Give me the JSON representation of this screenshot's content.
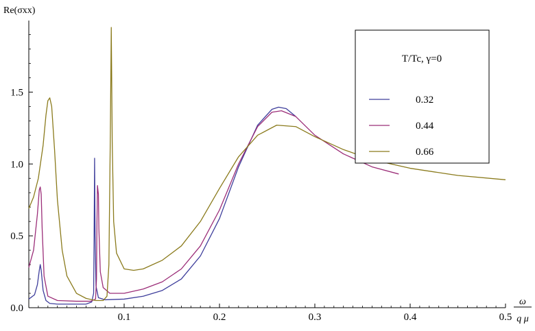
{
  "chart_data": {
    "type": "line",
    "ylabel": "Re(σxx)",
    "xlabel_numerator": "ω",
    "xlabel_denominator": "q μ",
    "xlim": [
      0,
      0.5
    ],
    "ylim": [
      0,
      1.95
    ],
    "x_ticks": [
      {
        "value": 0.1,
        "label": "0.1"
      },
      {
        "value": 0.2,
        "label": "0.2"
      },
      {
        "value": 0.3,
        "label": "0.3"
      },
      {
        "value": 0.4,
        "label": "0.4"
      },
      {
        "value": 0.5,
        "label": "0.5"
      }
    ],
    "y_ticks": [
      {
        "value": 0.0,
        "label": "0.0"
      },
      {
        "value": 0.5,
        "label": "0.5"
      },
      {
        "value": 1.0,
        "label": "1.0"
      },
      {
        "value": 1.5,
        "label": "1.5"
      }
    ],
    "legend": {
      "title": "T/Tc, γ=0",
      "position": "top-right"
    },
    "series": [
      {
        "name": "0.32",
        "color": "#3d3d9b",
        "points": [
          [
            0.0,
            0.06
          ],
          [
            0.006,
            0.09
          ],
          [
            0.009,
            0.16
          ],
          [
            0.011,
            0.26
          ],
          [
            0.012,
            0.3
          ],
          [
            0.013,
            0.26
          ],
          [
            0.015,
            0.12
          ],
          [
            0.018,
            0.05
          ],
          [
            0.022,
            0.03
          ],
          [
            0.03,
            0.025
          ],
          [
            0.045,
            0.025
          ],
          [
            0.06,
            0.025
          ],
          [
            0.066,
            0.04
          ],
          [
            0.068,
            0.1
          ],
          [
            0.0685,
            0.5
          ],
          [
            0.069,
            1.04
          ],
          [
            0.0695,
            0.5
          ],
          [
            0.0705,
            0.15
          ],
          [
            0.073,
            0.07
          ],
          [
            0.08,
            0.055
          ],
          [
            0.1,
            0.06
          ],
          [
            0.12,
            0.08
          ],
          [
            0.14,
            0.12
          ],
          [
            0.16,
            0.2
          ],
          [
            0.18,
            0.36
          ],
          [
            0.2,
            0.62
          ],
          [
            0.22,
            0.98
          ],
          [
            0.24,
            1.27
          ],
          [
            0.255,
            1.38
          ],
          [
            0.262,
            1.395
          ],
          [
            0.27,
            1.385
          ],
          [
            0.28,
            1.33
          ]
        ]
      },
      {
        "name": "0.44",
        "color": "#9b2d78",
        "points": [
          [
            0.0,
            0.28
          ],
          [
            0.005,
            0.4
          ],
          [
            0.009,
            0.65
          ],
          [
            0.011,
            0.82
          ],
          [
            0.012,
            0.84
          ],
          [
            0.013,
            0.79
          ],
          [
            0.014,
            0.55
          ],
          [
            0.016,
            0.22
          ],
          [
            0.02,
            0.08
          ],
          [
            0.03,
            0.05
          ],
          [
            0.05,
            0.045
          ],
          [
            0.065,
            0.045
          ],
          [
            0.07,
            0.06
          ],
          [
            0.071,
            0.2
          ],
          [
            0.0715,
            0.6
          ],
          [
            0.072,
            0.85
          ],
          [
            0.073,
            0.79
          ],
          [
            0.0735,
            0.55
          ],
          [
            0.075,
            0.25
          ],
          [
            0.078,
            0.14
          ],
          [
            0.085,
            0.1
          ],
          [
            0.1,
            0.1
          ],
          [
            0.12,
            0.13
          ],
          [
            0.14,
            0.18
          ],
          [
            0.16,
            0.27
          ],
          [
            0.18,
            0.43
          ],
          [
            0.2,
            0.68
          ],
          [
            0.22,
            1.0
          ],
          [
            0.24,
            1.26
          ],
          [
            0.255,
            1.36
          ],
          [
            0.265,
            1.37
          ],
          [
            0.28,
            1.33
          ],
          [
            0.3,
            1.2
          ],
          [
            0.33,
            1.07
          ],
          [
            0.36,
            0.98
          ],
          [
            0.388,
            0.93
          ]
        ]
      },
      {
        "name": "0.66",
        "color": "#8a7a1b",
        "points": [
          [
            0.0,
            0.69
          ],
          [
            0.005,
            0.77
          ],
          [
            0.01,
            0.9
          ],
          [
            0.015,
            1.13
          ],
          [
            0.018,
            1.34
          ],
          [
            0.02,
            1.44
          ],
          [
            0.022,
            1.46
          ],
          [
            0.024,
            1.4
          ],
          [
            0.027,
            1.1
          ],
          [
            0.03,
            0.75
          ],
          [
            0.035,
            0.4
          ],
          [
            0.04,
            0.22
          ],
          [
            0.05,
            0.1
          ],
          [
            0.06,
            0.065
          ],
          [
            0.07,
            0.05
          ],
          [
            0.078,
            0.05
          ],
          [
            0.082,
            0.08
          ],
          [
            0.084,
            0.3
          ],
          [
            0.0855,
            1.2
          ],
          [
            0.0865,
            1.95
          ],
          [
            0.0875,
            1.15
          ],
          [
            0.089,
            0.6
          ],
          [
            0.092,
            0.38
          ],
          [
            0.1,
            0.27
          ],
          [
            0.11,
            0.26
          ],
          [
            0.12,
            0.27
          ],
          [
            0.14,
            0.33
          ],
          [
            0.16,
            0.43
          ],
          [
            0.18,
            0.6
          ],
          [
            0.2,
            0.83
          ],
          [
            0.22,
            1.05
          ],
          [
            0.24,
            1.2
          ],
          [
            0.26,
            1.27
          ],
          [
            0.28,
            1.26
          ],
          [
            0.3,
            1.19
          ],
          [
            0.33,
            1.1
          ],
          [
            0.36,
            1.03
          ],
          [
            0.4,
            0.97
          ],
          [
            0.45,
            0.92
          ],
          [
            0.5,
            0.89
          ]
        ]
      }
    ]
  }
}
